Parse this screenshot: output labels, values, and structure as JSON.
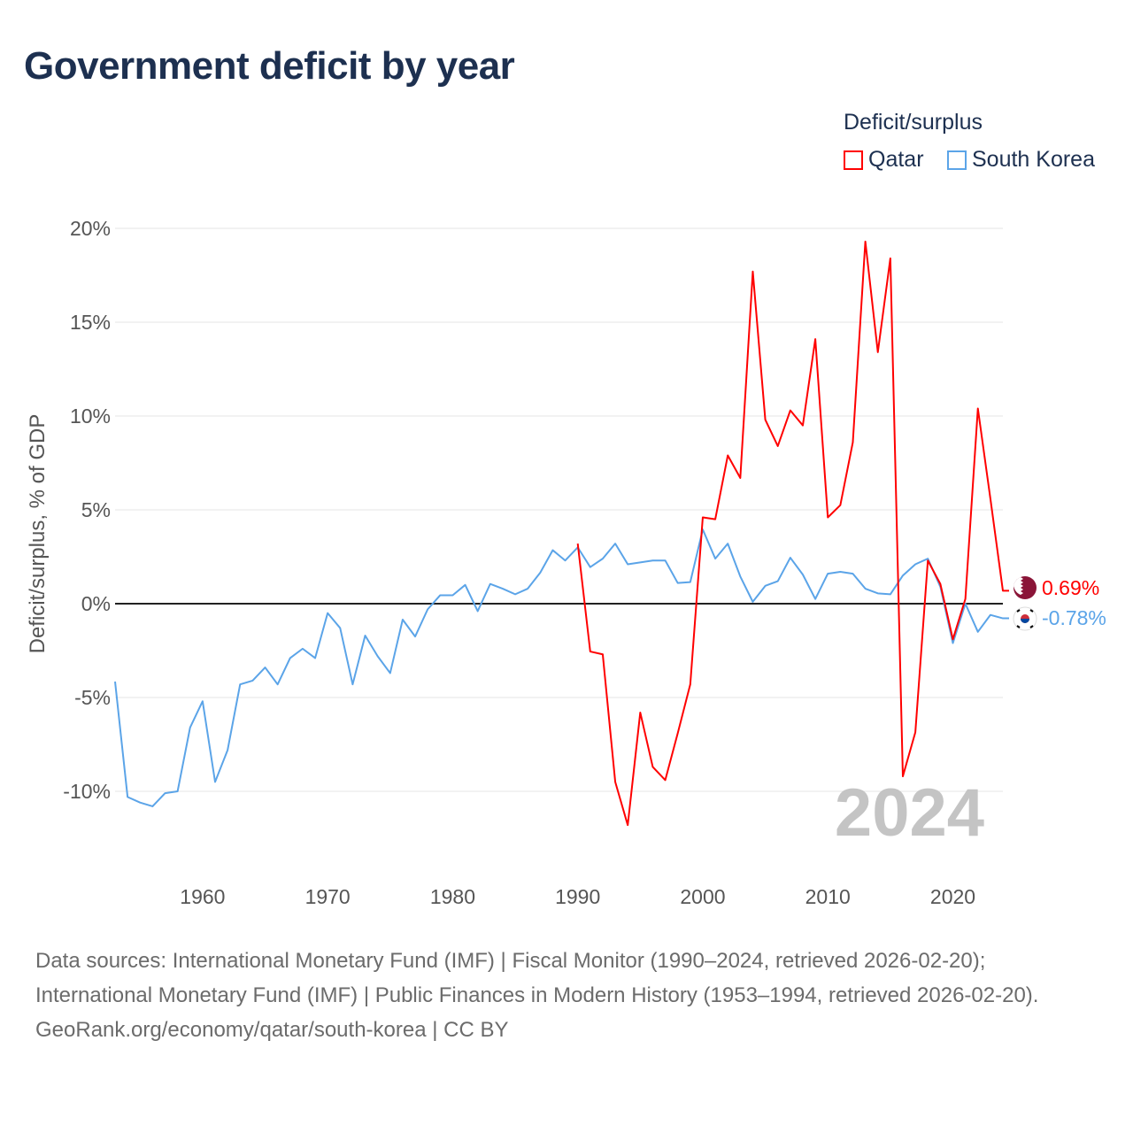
{
  "title": "Government deficit by year",
  "legend": {
    "title": "Deficit/surplus",
    "items": [
      {
        "label": "Qatar",
        "color": "#ff0000"
      },
      {
        "label": "South Korea",
        "color": "#5ba4e8"
      }
    ]
  },
  "chart_data": {
    "type": "line",
    "ylabel": "Deficit/surplus, % of GDP",
    "ylim": [
      -10,
      20
    ],
    "yticks": [
      20,
      15,
      10,
      5,
      0,
      -5,
      -10
    ],
    "ytick_labels": [
      "20%",
      "15%",
      "10%",
      "5%",
      "0%",
      "-5%",
      "-10%"
    ],
    "xlim": [
      1953,
      2024
    ],
    "xticks": [
      1960,
      1970,
      1980,
      1990,
      2000,
      2010,
      2020
    ],
    "xtick_labels": [
      "1960",
      "1970",
      "1980",
      "1990",
      "2000",
      "2010",
      "2020"
    ],
    "year_watermark": "2024",
    "series": [
      {
        "name": "Qatar",
        "color": "#ff0000",
        "end_label": "0.69%",
        "start_year": 1990,
        "values": [
          3.2,
          -2.55,
          -2.7,
          -9.5,
          -11.8,
          -5.8,
          -8.7,
          -9.4,
          -6.9,
          -4.3,
          4.6,
          4.5,
          7.9,
          6.7,
          17.7,
          9.8,
          8.4,
          10.3,
          9.5,
          14.1,
          4.6,
          5.25,
          8.6,
          19.3,
          13.4,
          18.4,
          -9.2,
          -6.85,
          2.3,
          1.05,
          -1.9,
          0.25,
          10.4,
          5.6,
          0.69
        ]
      },
      {
        "name": "South Korea",
        "color": "#5ba4e8",
        "end_label": "-0.78%",
        "start_year": 1953,
        "values": [
          -4.15,
          -10.3,
          -10.6,
          -10.8,
          -10.1,
          -10.0,
          -6.6,
          -5.2,
          -9.5,
          -7.8,
          -4.3,
          -4.1,
          -3.4,
          -4.3,
          -2.9,
          -2.4,
          -2.9,
          -0.5,
          -1.3,
          -4.3,
          -1.7,
          -2.8,
          -3.7,
          -0.85,
          -1.75,
          -0.3,
          0.45,
          0.45,
          1.0,
          -0.4,
          1.05,
          0.8,
          0.5,
          0.8,
          1.65,
          2.85,
          2.3,
          3.0,
          1.95,
          2.4,
          3.2,
          2.1,
          2.2,
          2.3,
          2.3,
          1.1,
          1.15,
          3.95,
          2.4,
          3.2,
          1.45,
          0.1,
          0.95,
          1.2,
          2.45,
          1.55,
          0.25,
          1.6,
          1.7,
          1.6,
          0.8,
          0.55,
          0.5,
          1.5,
          2.1,
          2.4,
          0.9,
          -2.1,
          0.0,
          -1.5,
          -0.6,
          -0.78
        ]
      }
    ]
  },
  "footer": {
    "sources": "Data sources: International Monetary Fund (IMF) | Fiscal Monitor (1990–2024, retrieved 2026-02-20); International Monetary Fund (IMF) | Public Finances in Modern History (1953–1994, retrieved 2026-02-20).",
    "link": "GeoRank.org/economy/qatar/south-korea | CC BY"
  }
}
